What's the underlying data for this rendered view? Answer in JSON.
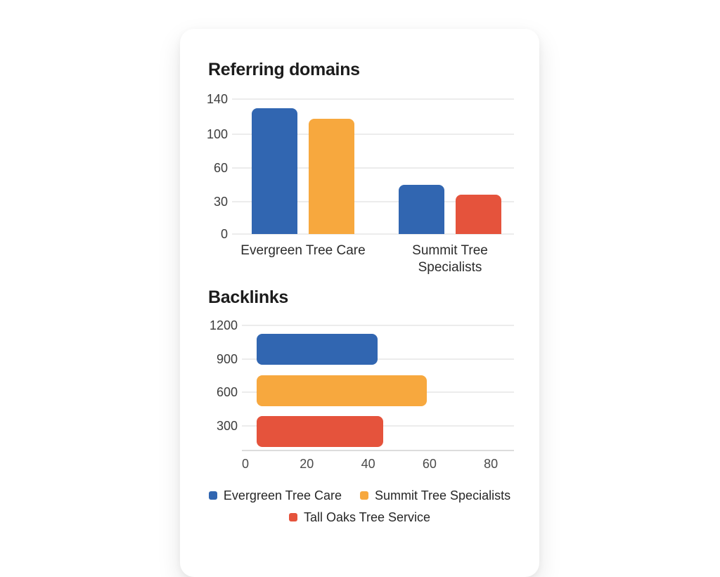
{
  "card": {
    "background": "#ffffff"
  },
  "colors": {
    "blue": "#3166b1",
    "yellow": "#f7a83e",
    "red": "#e5533c",
    "gridline": "#ececec",
    "axis_line": "#dcdcdc",
    "title_text": "#1c1c1c",
    "tick_text": "#3c3c3c"
  },
  "chart_data": [
    {
      "type": "bar",
      "orientation": "vertical",
      "title": "Referring domains",
      "categories": [
        "Evergreen Tree Care",
        "Summit Tree Specialists"
      ],
      "y_tick_labels": [
        140,
        100,
        60,
        30,
        0
      ],
      "grid": true,
      "series": [
        {
          "name": "Evergreen Tree Care",
          "color": "#3166b1",
          "values": [
            130,
            45
          ]
        },
        {
          "name": "Summit Tree Specialists",
          "color": "#f7a83e",
          "values": [
            118,
            null
          ]
        },
        {
          "name": "Tall Oaks Tree Service",
          "color": "#e5533c",
          "values": [
            null,
            36
          ]
        }
      ]
    },
    {
      "type": "bar",
      "orientation": "horizontal",
      "title": "Backlinks",
      "y_tick_labels": [
        1200,
        900,
        600,
        300
      ],
      "x_tick_labels": [
        0,
        20,
        40,
        60,
        80
      ],
      "xlim": [
        0,
        88
      ],
      "grid": true,
      "legend_position": "bottom",
      "bars": [
        {
          "name": "Evergreen Tree Care",
          "color": "#3166b1",
          "value": 43
        },
        {
          "name": "Summit Tree Specialists",
          "color": "#f7a83e",
          "value": 59
        },
        {
          "name": "Tall Oaks Tree Service",
          "color": "#e5533c",
          "value": 45
        }
      ]
    }
  ],
  "legend": {
    "items": [
      {
        "label": "Evergreen Tree Care",
        "color": "#3166b1"
      },
      {
        "label": "Summit Tree Specialists",
        "color": "#f7a83e"
      },
      {
        "label": "Tall Oaks Tree Service",
        "color": "#e5533c"
      }
    ]
  }
}
